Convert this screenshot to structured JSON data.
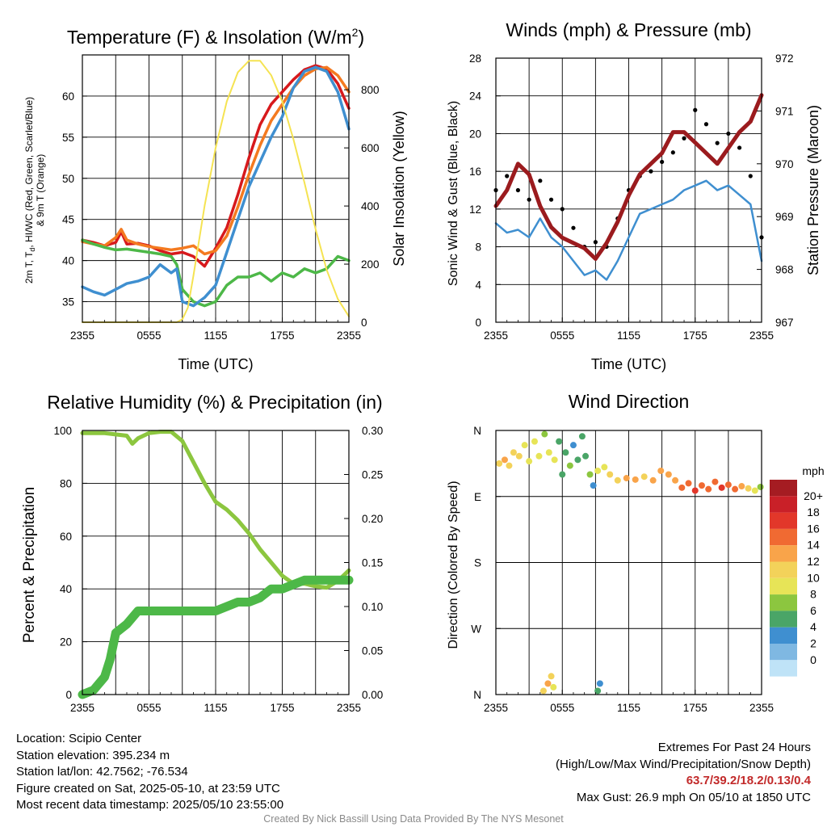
{
  "colors": {
    "temp_red": "#d7191c",
    "dewpoint_green": "#4db848",
    "hiwc_blue": "#3f8fd0",
    "temp9m_orange": "#f47a20",
    "insolation_yellow": "#f5e352",
    "pressure_maroon": "#9b1b1e",
    "gust_black": "#000000",
    "rh_lightgreen": "#8cc63f",
    "precip_green": "#4db848"
  },
  "speed_scale": {
    "unit": "mph",
    "labels": [
      "20+",
      "18",
      "16",
      "14",
      "12",
      "10",
      "8",
      "6",
      "4",
      "2",
      "0"
    ],
    "colors": [
      "#a51c22",
      "#c92028",
      "#e2372a",
      "#f06a32",
      "#f9a44a",
      "#f3d25a",
      "#e7e457",
      "#8cc63f",
      "#4aa567",
      "#3f8fd0",
      "#7fb8e2",
      "#bfe3f7"
    ]
  },
  "chart_data": [
    {
      "type": "line",
      "title": "Temperature (F) & Insolation (W/m²)",
      "xlabel": "Time (UTC)",
      "ylabel": "2m T, Td, HI/WC (Red, Green, Scarlet/Blue) & 9m T (Orange)",
      "y2label": "Solar Insolation (Yellow)",
      "xticks": [
        "2355",
        "0555",
        "1155",
        "1755",
        "2355"
      ],
      "xlim": [
        0,
        24
      ],
      "ylim": [
        32.5,
        65
      ],
      "yticks": [
        35,
        40,
        45,
        50,
        55,
        60
      ],
      "y2lim": [
        0,
        920
      ],
      "y2ticks": [
        0,
        200,
        400,
        600,
        800
      ],
      "grid": true,
      "series": [
        {
          "name": "2m T",
          "color": "#d7191c",
          "axis": "left",
          "x": [
            0,
            1,
            2,
            3,
            3.5,
            4,
            5,
            6,
            7,
            8,
            9,
            10,
            11,
            12,
            13,
            14,
            15,
            16,
            17,
            18,
            19,
            20,
            21,
            22,
            23,
            24
          ],
          "y": [
            42.5,
            42.2,
            41.8,
            42.2,
            43.5,
            42.0,
            42.1,
            41.8,
            41.2,
            40.8,
            41.0,
            40.5,
            39.3,
            41.5,
            44.0,
            48.0,
            52.5,
            56.5,
            59.0,
            60.5,
            62.0,
            63.2,
            63.7,
            63.3,
            61.5,
            58.5
          ]
        },
        {
          "name": "9m T",
          "color": "#f47a20",
          "axis": "left",
          "x": [
            0,
            1,
            2,
            3,
            3.5,
            4,
            5,
            6,
            7,
            8,
            9,
            10,
            11,
            12,
            13,
            14,
            15,
            16,
            17,
            18,
            19,
            20,
            21,
            22,
            23,
            24
          ],
          "y": [
            42.3,
            42.0,
            41.8,
            42.8,
            43.8,
            42.5,
            42.0,
            41.7,
            41.5,
            41.3,
            41.5,
            41.8,
            40.8,
            41.2,
            43.0,
            46.5,
            50.5,
            54.0,
            57.0,
            59.0,
            61.0,
            62.5,
            63.3,
            63.5,
            62.5,
            60.5
          ]
        },
        {
          "name": "Td",
          "color": "#4db848",
          "axis": "left",
          "x": [
            0,
            1,
            2,
            3,
            4,
            5,
            6,
            7,
            8,
            8.5,
            9,
            10,
            11,
            12,
            13,
            14,
            15,
            16,
            17,
            18,
            19,
            20,
            21,
            22,
            23,
            24
          ],
          "y": [
            42.5,
            42.0,
            41.6,
            41.3,
            41.4,
            41.2,
            41.0,
            40.8,
            40.5,
            39.5,
            36.5,
            35.0,
            34.5,
            35.0,
            37.0,
            38.0,
            38.0,
            38.5,
            37.5,
            38.5,
            38.0,
            39.0,
            38.5,
            39.0,
            40.5,
            40.0
          ]
        },
        {
          "name": "HI/WC",
          "color": "#3f8fd0",
          "axis": "left",
          "x": [
            0,
            1,
            2,
            3,
            4,
            5,
            6,
            7,
            8,
            8.5,
            9,
            10,
            11,
            12,
            13,
            14,
            15,
            16,
            17,
            18,
            19,
            20,
            21,
            22,
            23,
            24
          ],
          "y": [
            36.8,
            36.2,
            35.8,
            36.5,
            37.2,
            37.5,
            38.0,
            39.5,
            38.5,
            39.0,
            35.0,
            34.5,
            35.5,
            37.0,
            41.0,
            45.0,
            49.0,
            52.0,
            55.0,
            57.5,
            61.0,
            63.0,
            63.5,
            63.0,
            60.5,
            56.0
          ]
        },
        {
          "name": "Solar Insolation",
          "color": "#f5e352",
          "axis": "right",
          "x": [
            0,
            2,
            4,
            6,
            7.5,
            8.5,
            9,
            9.5,
            10,
            11,
            12,
            13,
            14,
            15,
            16,
            17,
            18,
            19,
            20,
            21,
            22,
            23,
            24
          ],
          "y": [
            0,
            0,
            0,
            0,
            0,
            0,
            10,
            50,
            160,
            400,
            600,
            760,
            860,
            900,
            900,
            850,
            760,
            630,
            480,
            320,
            180,
            80,
            20
          ]
        }
      ]
    },
    {
      "type": "line",
      "title": "Winds (mph) & Pressure (mb)",
      "xlabel": "Time (UTC)",
      "ylabel": "Sonic Wind & Gust (Blue, Black)",
      "y2label": "Station Pressure (Maroon)",
      "xticks": [
        "2355",
        "0555",
        "1155",
        "1755",
        "2355"
      ],
      "xlim": [
        0,
        24
      ],
      "ylim": [
        0,
        28
      ],
      "yticks": [
        0,
        4,
        8,
        12,
        16,
        20,
        24,
        28
      ],
      "y2lim": [
        967,
        972
      ],
      "y2ticks": [
        967,
        968,
        969,
        970,
        971,
        972
      ],
      "grid": true,
      "series": [
        {
          "name": "Sonic Wind",
          "color": "#3f8fd0",
          "axis": "left",
          "x": [
            0,
            1,
            2,
            3,
            4,
            5,
            6,
            7,
            8,
            9,
            10,
            11,
            12,
            13,
            14,
            15,
            16,
            17,
            18,
            19,
            20,
            21,
            22,
            23,
            24
          ],
          "y": [
            10.5,
            9.5,
            9.8,
            9.0,
            11.0,
            9.0,
            8.0,
            6.5,
            5.0,
            5.5,
            4.5,
            6.5,
            9.0,
            11.5,
            12.0,
            12.5,
            13.0,
            14.0,
            14.5,
            15.0,
            14.0,
            14.5,
            13.5,
            12.5,
            6.5
          ]
        },
        {
          "name": "Gust",
          "color": "#000000",
          "axis": "left",
          "x": [
            0,
            1,
            2,
            3,
            4,
            5,
            6,
            7,
            8,
            9,
            10,
            11,
            12,
            13,
            14,
            15,
            16,
            17,
            18,
            19,
            20,
            21,
            22,
            23,
            24
          ],
          "y": [
            14.0,
            15.5,
            14.0,
            13.0,
            15.0,
            13.0,
            12.0,
            10.0,
            8.0,
            8.5,
            8.0,
            11.0,
            14.0,
            15.5,
            16.0,
            17.0,
            18.0,
            19.5,
            22.5,
            21.0,
            19.0,
            20.0,
            18.5,
            15.5,
            9.0
          ]
        },
        {
          "name": "Station Pressure",
          "color": "#9b1b1e",
          "axis": "right",
          "x": [
            0,
            1,
            2,
            3,
            4,
            5,
            6,
            7,
            8,
            9,
            10,
            11,
            12,
            13,
            14,
            15,
            16,
            17,
            18,
            19,
            20,
            21,
            22,
            23,
            24
          ],
          "y": [
            969.2,
            969.5,
            970.0,
            969.8,
            969.2,
            968.8,
            968.6,
            968.5,
            968.4,
            968.2,
            968.5,
            968.9,
            969.4,
            969.8,
            970.0,
            970.2,
            970.6,
            970.6,
            970.4,
            970.2,
            970.0,
            970.3,
            970.6,
            970.8,
            971.3
          ]
        }
      ]
    },
    {
      "type": "line",
      "title": "Relative Humidity (%) & Precipitation (in)",
      "xlabel": "",
      "ylabel": "Percent & Precipitation",
      "xticks": [
        "2355",
        "0555",
        "1155",
        "1755",
        "2355"
      ],
      "xlim": [
        0,
        24
      ],
      "ylim": [
        0,
        100
      ],
      "yticks": [
        0,
        20,
        40,
        60,
        80,
        100
      ],
      "y2lim": [
        0,
        0.3
      ],
      "y2ticks": [
        "0.00",
        "0.05",
        "0.10",
        "0.15",
        "0.20",
        "0.25",
        "0.30"
      ],
      "grid": true,
      "series": [
        {
          "name": "Relative Humidity",
          "color": "#8cc63f",
          "axis": "left",
          "x": [
            0,
            1,
            2,
            3,
            4,
            4.5,
            5,
            6,
            7,
            8,
            9,
            10,
            11,
            12,
            13,
            14,
            15,
            16,
            17,
            18,
            19,
            20,
            21,
            22,
            23,
            24
          ],
          "y": [
            99,
            99,
            99,
            98.5,
            98,
            95,
            97,
            99,
            99.5,
            99.5,
            96,
            88,
            80,
            73,
            70,
            66,
            61,
            55,
            50,
            45,
            42,
            42,
            41,
            40.5,
            43,
            47
          ]
        },
        {
          "name": "Precipitation",
          "color": "#4db848",
          "axis": "right",
          "x": [
            0,
            1,
            2,
            2.5,
            3,
            4,
            5,
            6,
            7,
            8,
            9,
            10,
            11,
            12,
            13,
            14,
            15,
            16,
            17,
            18,
            19,
            20,
            21,
            22,
            23,
            24
          ],
          "y": [
            0,
            0.005,
            0.02,
            0.04,
            0.07,
            0.08,
            0.095,
            0.095,
            0.095,
            0.095,
            0.095,
            0.095,
            0.095,
            0.095,
            0.1,
            0.105,
            0.105,
            0.11,
            0.12,
            0.12,
            0.125,
            0.13,
            0.13,
            0.13,
            0.13,
            0.13
          ]
        }
      ]
    },
    {
      "type": "scatter",
      "title": "Wind Direction",
      "xlabel": "",
      "ylabel": "Direction (Colored By Speed)",
      "xticks": [
        "2355",
        "0555",
        "1155",
        "1755",
        "2355"
      ],
      "xlim": [
        0,
        24
      ],
      "ylim": [
        0,
        360
      ],
      "yticks": [
        "N",
        "E",
        "S",
        "W",
        "N"
      ],
      "grid": true,
      "points": [
        {
          "x": 0.3,
          "y": 315,
          "speed": 11
        },
        {
          "x": 0.8,
          "y": 320,
          "speed": 12
        },
        {
          "x": 1.2,
          "y": 312,
          "speed": 10
        },
        {
          "x": 1.6,
          "y": 330,
          "speed": 11
        },
        {
          "x": 2.1,
          "y": 325,
          "speed": 10
        },
        {
          "x": 2.6,
          "y": 340,
          "speed": 9
        },
        {
          "x": 3.0,
          "y": 318,
          "speed": 8
        },
        {
          "x": 3.5,
          "y": 345,
          "speed": 9
        },
        {
          "x": 3.9,
          "y": 325,
          "speed": 8
        },
        {
          "x": 4.4,
          "y": 355,
          "speed": 7
        },
        {
          "x": 4.8,
          "y": 330,
          "speed": 8
        },
        {
          "x": 5.3,
          "y": 320,
          "speed": 8
        },
        {
          "x": 5.7,
          "y": 345,
          "speed": 5
        },
        {
          "x": 6.0,
          "y": 300,
          "speed": 4
        },
        {
          "x": 6.3,
          "y": 330,
          "speed": 5
        },
        {
          "x": 6.7,
          "y": 312,
          "speed": 6
        },
        {
          "x": 7.0,
          "y": 340,
          "speed": 3
        },
        {
          "x": 7.4,
          "y": 320,
          "speed": 4
        },
        {
          "x": 7.8,
          "y": 352,
          "speed": 5
        },
        {
          "x": 8.1,
          "y": 325,
          "speed": 4
        },
        {
          "x": 8.5,
          "y": 300,
          "speed": 6
        },
        {
          "x": 8.8,
          "y": 285,
          "speed": 3
        },
        {
          "x": 9.2,
          "y": 305,
          "speed": 8
        },
        {
          "x": 9.8,
          "y": 310,
          "speed": 9
        },
        {
          "x": 10.3,
          "y": 300,
          "speed": 10
        },
        {
          "x": 11.0,
          "y": 292,
          "speed": 11
        },
        {
          "x": 11.8,
          "y": 295,
          "speed": 12
        },
        {
          "x": 12.6,
          "y": 293,
          "speed": 12
        },
        {
          "x": 13.4,
          "y": 297,
          "speed": 11
        },
        {
          "x": 14.2,
          "y": 292,
          "speed": 12
        },
        {
          "x": 14.9,
          "y": 305,
          "speed": 13
        },
        {
          "x": 15.6,
          "y": 300,
          "speed": 12
        },
        {
          "x": 16.2,
          "y": 292,
          "speed": 13
        },
        {
          "x": 16.8,
          "y": 282,
          "speed": 14
        },
        {
          "x": 17.4,
          "y": 288,
          "speed": 15
        },
        {
          "x": 18.0,
          "y": 278,
          "speed": 16
        },
        {
          "x": 18.6,
          "y": 285,
          "speed": 14
        },
        {
          "x": 19.2,
          "y": 280,
          "speed": 15
        },
        {
          "x": 19.8,
          "y": 290,
          "speed": 14
        },
        {
          "x": 20.4,
          "y": 282,
          "speed": 16
        },
        {
          "x": 21.0,
          "y": 286,
          "speed": 15
        },
        {
          "x": 21.6,
          "y": 280,
          "speed": 14
        },
        {
          "x": 22.2,
          "y": 284,
          "speed": 12
        },
        {
          "x": 22.8,
          "y": 281,
          "speed": 11
        },
        {
          "x": 23.4,
          "y": 278,
          "speed": 8
        },
        {
          "x": 23.9,
          "y": 283,
          "speed": 7
        },
        {
          "x": 4.3,
          "y": 5,
          "speed": 11
        },
        {
          "x": 4.7,
          "y": 15,
          "speed": 12
        },
        {
          "x": 5.0,
          "y": 25,
          "speed": 10
        },
        {
          "x": 5.2,
          "y": 10,
          "speed": 9
        },
        {
          "x": 9.2,
          "y": 5,
          "speed": 4
        },
        {
          "x": 9.4,
          "y": 15,
          "speed": 3
        }
      ]
    }
  ],
  "footer": {
    "location": "Location: Scipio Center",
    "elevation": "Station elevation: 395.234 m",
    "latlon": "Station lat/lon: 42.7562; -76.534",
    "created": "Figure created on Sat, 2025-05-10, at 23:59 UTC",
    "recent": "Most recent data timestamp: 2025/05/10 23:55:00",
    "extremes_title": "Extremes For Past 24 Hours",
    "extremes_desc": "(High/Low/Max Wind/Precipitation/Snow Depth)",
    "extremes_values": "63.7/39.2/18.2/0.13/0.4",
    "max_gust": "Max Gust: 26.9 mph On 05/10 at 1850 UTC",
    "credit": "Created By Nick Bassill Using Data Provided By The NYS Mesonet"
  }
}
